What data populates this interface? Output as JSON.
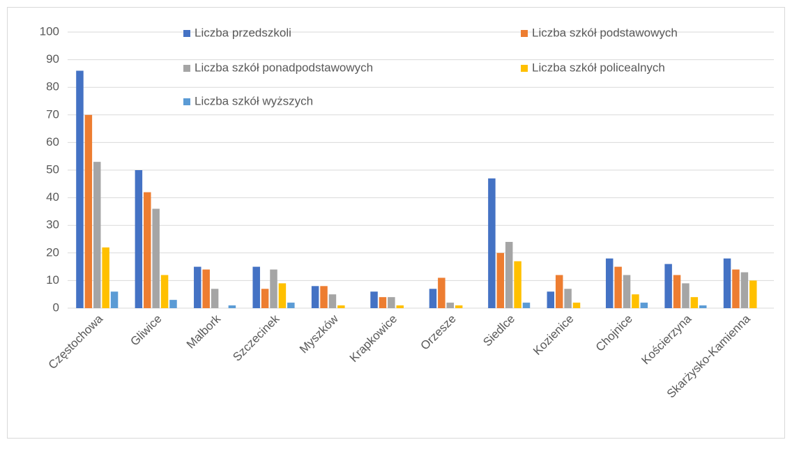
{
  "chart_data": {
    "type": "bar",
    "categories": [
      "Częstochowa",
      "Gliwice",
      "Malbork",
      "Szczecinek",
      "Myszków",
      "Krapkowice",
      "Orzesze",
      "Siedlce",
      "Kozienice",
      "Chojnice",
      "Kościerzyna",
      "Skarżysko-Kamienna"
    ],
    "series": [
      {
        "name": "Liczba przedszkoli",
        "color": "#4472c4",
        "values": [
          86,
          50,
          15,
          15,
          8,
          6,
          7,
          47,
          6,
          18,
          16,
          18
        ]
      },
      {
        "name": "Liczba szkół podstawowych",
        "color": "#ed7d31",
        "values": [
          70,
          42,
          14,
          7,
          8,
          4,
          11,
          20,
          12,
          15,
          12,
          14
        ]
      },
      {
        "name": "Liczba szkół ponadpodstawowych",
        "color": "#a5a5a5",
        "values": [
          53,
          36,
          7,
          14,
          5,
          4,
          2,
          24,
          7,
          12,
          9,
          13
        ]
      },
      {
        "name": "Liczba szkół policealnych",
        "color": "#ffc000",
        "values": [
          22,
          12,
          0,
          9,
          1,
          1,
          1,
          17,
          2,
          5,
          4,
          10
        ]
      },
      {
        "name": "Liczba szkół wyższych",
        "color": "#5b9bd5",
        "values": [
          6,
          3,
          1,
          2,
          0,
          0,
          0,
          2,
          0,
          2,
          1,
          0
        ]
      }
    ],
    "ylim": [
      0,
      100
    ],
    "yticks": [
      0,
      10,
      20,
      30,
      40,
      50,
      60,
      70,
      80,
      90,
      100
    ],
    "grid": true,
    "legend": "top"
  }
}
